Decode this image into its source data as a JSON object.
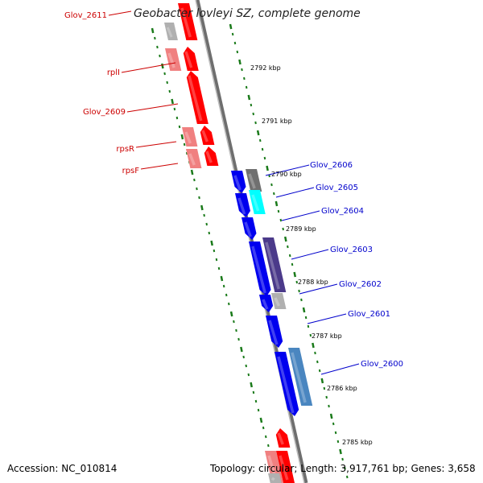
{
  "title": "Geobacter lovleyi SZ, complete genome",
  "footer": {
    "accession": "Accession: NC_010814",
    "summary": "Topology: circular; Length: 3,917,761 bp; Genes: 3,658"
  },
  "colors": {
    "backbone": "#808080",
    "tick": "#1a7a1a",
    "forward_label": "#cc0000",
    "reverse_label": "#0000cc",
    "red": "#ff0000",
    "light_red": "#f08080",
    "blue": "#0000ee",
    "cyan": "#00ffff",
    "slate_purple": "#4b3a8a",
    "steel_blue": "#4a86c0",
    "grey": "#b0b0b0",
    "dark_grey": "#707070"
  },
  "kbp_labels": [
    "2792 kbp",
    "2791 kbp",
    "2790 kbp",
    "2789 kbp",
    "2788 kbp",
    "2787 kbp",
    "2786 kbp",
    "2785 kbp"
  ],
  "left_labels": [
    "Glov_2611",
    "rplI",
    "Glov_2609",
    "rpsR",
    "rpsF"
  ],
  "right_labels": [
    "Glov_2606",
    "Glov_2605",
    "Glov_2604",
    "Glov_2603",
    "Glov_2602",
    "Glov_2601",
    "Glov_2600"
  ]
}
